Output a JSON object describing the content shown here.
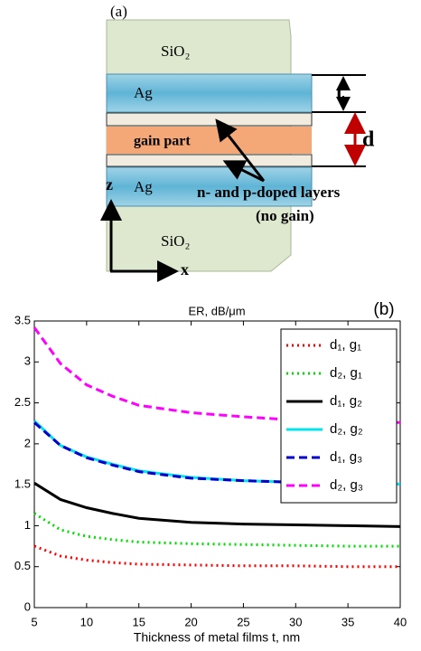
{
  "diagram": {
    "panel": "(a)",
    "top_cladding": "SiO₂",
    "top_metal": "Ag",
    "core": "gain part",
    "bottom_metal": "Ag",
    "bottom_cladding": "SiO₂",
    "doped_note": "n- and p-doped layers",
    "doped_note2": "(no gain)",
    "t_label": "t",
    "d_label": "d",
    "z_axis": "z",
    "x_axis": "x"
  },
  "chart_data": {
    "type": "line",
    "title": "ER, dB/μm",
    "panel": "(b)",
    "x_label": "Thickness of metal films t, nm",
    "x": [
      5,
      7.5,
      10,
      12.5,
      15,
      20,
      25,
      30,
      35,
      40
    ],
    "series": [
      {
        "name": "d₁, g₁",
        "color": "#ff0000",
        "linestyle": "dotted",
        "values": [
          0.75,
          0.63,
          0.58,
          0.55,
          0.53,
          0.52,
          0.51,
          0.51,
          0.5,
          0.5
        ]
      },
      {
        "name": "d₂, g₁",
        "color": "#00dd00",
        "linestyle": "dotted",
        "values": [
          1.15,
          0.95,
          0.87,
          0.83,
          0.8,
          0.78,
          0.77,
          0.76,
          0.75,
          0.75
        ]
      },
      {
        "name": "d₁, g₂",
        "color": "#000000",
        "linestyle": "solid",
        "values": [
          1.52,
          1.32,
          1.22,
          1.15,
          1.09,
          1.04,
          1.02,
          1.01,
          1.0,
          0.99
        ]
      },
      {
        "name": "d₂, g₂",
        "color": "#00e5ee",
        "linestyle": "solid",
        "values": [
          2.28,
          1.98,
          1.84,
          1.75,
          1.67,
          1.59,
          1.55,
          1.53,
          1.52,
          1.51
        ]
      },
      {
        "name": "d₁, g₃",
        "color": "#0000cc",
        "linestyle": "dashed",
        "values": [
          2.26,
          1.98,
          1.83,
          1.74,
          1.66,
          1.58,
          1.55,
          1.53,
          1.52,
          1.5
        ]
      },
      {
        "name": "d₂, g₃",
        "color": "#ff00ff",
        "linestyle": "dashed",
        "values": [
          3.42,
          2.98,
          2.72,
          2.58,
          2.47,
          2.38,
          2.33,
          2.29,
          2.27,
          2.26
        ]
      }
    ],
    "xlim": [
      5,
      40
    ],
    "xticks": [
      5,
      10,
      15,
      20,
      25,
      30,
      35,
      40
    ],
    "ylim": [
      0,
      3.5
    ],
    "yticks": [
      0,
      0.5,
      1,
      1.5,
      2,
      2.5,
      3,
      3.5
    ],
    "legend": "upper right",
    "grid": false
  }
}
